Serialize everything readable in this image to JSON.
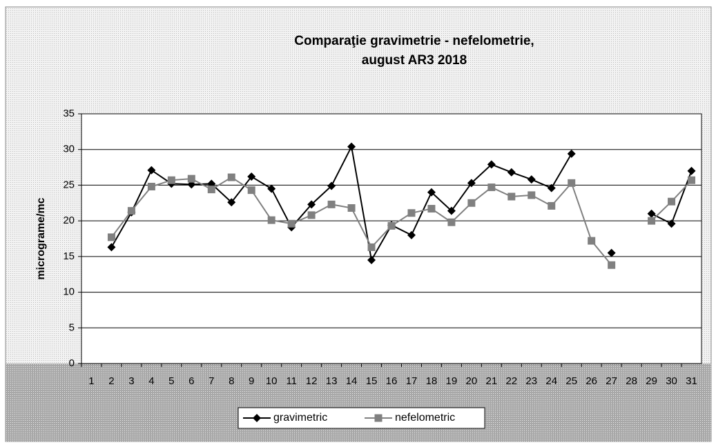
{
  "chart_data": {
    "type": "line",
    "title": [
      "Comparaţie gravimetrie - nefelometrie,",
      "august AR3 2018"
    ],
    "ylabel": "micrograme/mc",
    "categories": [
      "1",
      "2",
      "3",
      "4",
      "5",
      "6",
      "7",
      "8",
      "9",
      "10",
      "11",
      "12",
      "13",
      "14",
      "15",
      "16",
      "17",
      "18",
      "19",
      "20",
      "21",
      "22",
      "23",
      "24",
      "25",
      "26",
      "27",
      "28",
      "29",
      "30",
      "31"
    ],
    "series": [
      {
        "name": "gravimetric",
        "color": "#000000",
        "marker": "diamond",
        "values": [
          null,
          16.3,
          21.2,
          27.1,
          25.2,
          25.1,
          25.2,
          22.6,
          26.2,
          24.5,
          19.1,
          22.3,
          24.9,
          30.4,
          14.5,
          19.4,
          18.0,
          24.0,
          21.4,
          25.3,
          27.9,
          26.8,
          25.8,
          24.6,
          29.4,
          null,
          15.5,
          null,
          21.0,
          19.6,
          27.0
        ]
      },
      {
        "name": "nefelometric",
        "color": "#808080",
        "marker": "square",
        "values": [
          null,
          17.7,
          21.4,
          24.8,
          25.7,
          25.9,
          24.4,
          26.1,
          24.3,
          20.1,
          19.6,
          20.8,
          22.3,
          21.8,
          16.3,
          19.3,
          21.1,
          21.7,
          19.8,
          22.5,
          24.7,
          23.4,
          23.6,
          22.1,
          25.3,
          17.2,
          13.8,
          null,
          20.0,
          22.7,
          25.7
        ]
      }
    ],
    "ylim": [
      0,
      35
    ],
    "yticks": [
      0,
      5,
      10,
      15,
      20,
      25,
      30,
      35
    ],
    "grid": true,
    "legend": "bottom"
  }
}
